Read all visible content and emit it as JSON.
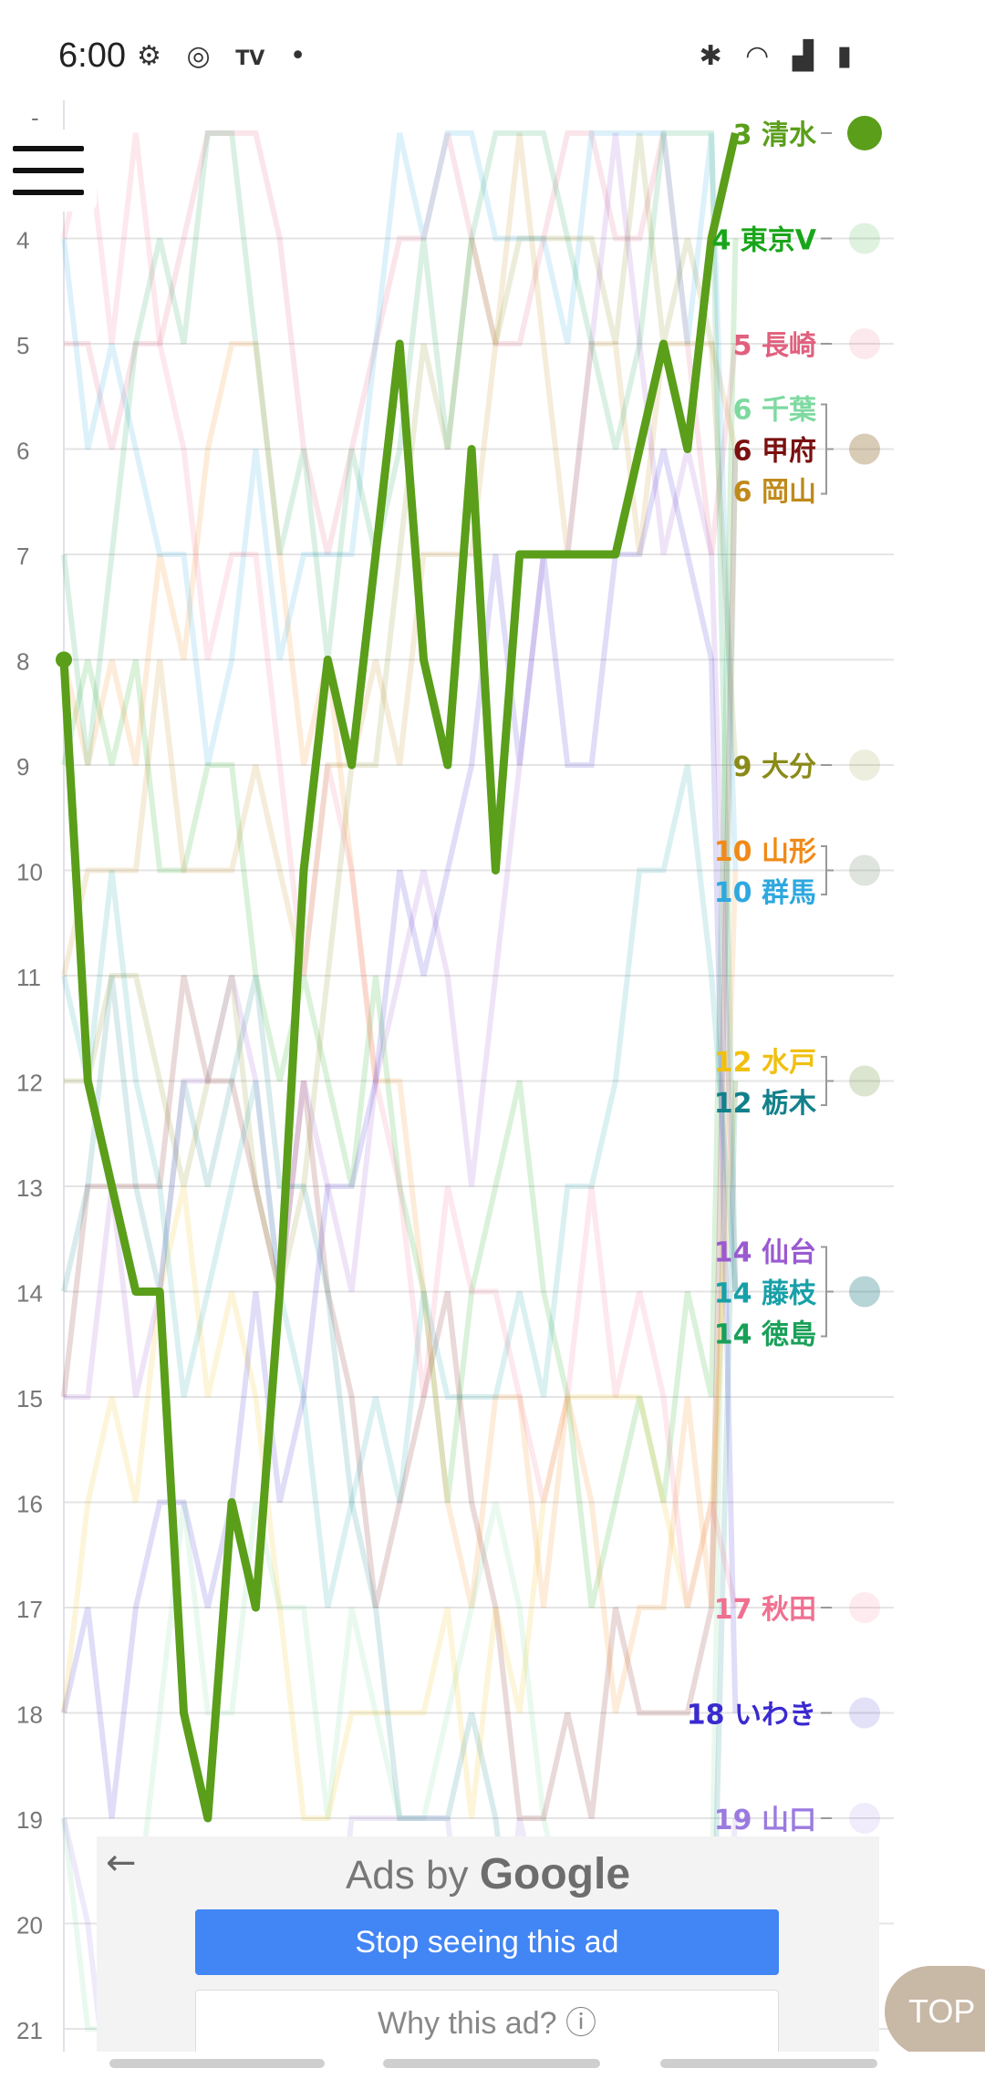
{
  "status_bar": {
    "time": "6:00",
    "left_icons": [
      "gear-icon",
      "instagram-icon",
      "tver-icon",
      "dot-icon"
    ],
    "right_icons": [
      "bluetooth-icon",
      "wifi-icon",
      "signal-icon",
      "battery-icon"
    ]
  },
  "chart_data": {
    "type": "line",
    "y_ticks": [
      4,
      5,
      6,
      7,
      8,
      9,
      10,
      11,
      12,
      13,
      14,
      15,
      16,
      17,
      18,
      19,
      20,
      21
    ],
    "y_partial_top": "-",
    "highlight_series": {
      "name": "清水",
      "color": "#5a9e1a",
      "values": [
        8,
        12,
        13,
        14,
        14,
        18,
        19,
        16,
        17,
        14,
        10,
        8,
        9,
        7,
        5,
        8,
        9,
        6,
        10,
        7,
        7,
        7,
        7,
        7,
        6,
        5,
        6,
        4,
        3
      ]
    },
    "end_labels": [
      {
        "rank": "3",
        "team": "清水",
        "color": "#5a9e1a"
      },
      {
        "rank": "4",
        "team": "東京V",
        "color": "#19a519"
      },
      {
        "rank": "5",
        "team": "長崎",
        "color": "#e0607e"
      },
      {
        "rank": "6",
        "team": "千葉",
        "color": "#7ed9a0"
      },
      {
        "rank": "6",
        "team": "甲府",
        "color": "#7a1010"
      },
      {
        "rank": "6",
        "team": "岡山",
        "color": "#c08a1a"
      },
      {
        "rank": "9",
        "team": "大分",
        "color": "#8a8a18"
      },
      {
        "rank": "10",
        "team": "山形",
        "color": "#f08a18"
      },
      {
        "rank": "10",
        "team": "群馬",
        "color": "#2ea8e0"
      },
      {
        "rank": "12",
        "team": "水戸",
        "color": "#f0c010"
      },
      {
        "rank": "12",
        "team": "栃木",
        "color": "#12808a"
      },
      {
        "rank": "14",
        "team": "仙台",
        "color": "#9a5ad0"
      },
      {
        "rank": "14",
        "team": "藤枝",
        "color": "#18a0a8"
      },
      {
        "rank": "14",
        "team": "徳島",
        "color": "#18a058"
      },
      {
        "rank": "17",
        "team": "秋田",
        "color": "#f07090"
      },
      {
        "rank": "18",
        "team": "いわき",
        "color": "#3a2ad0"
      },
      {
        "rank": "19",
        "team": "山口",
        "color": "#9a7ae0"
      }
    ],
    "grid": true
  },
  "menu": {
    "icon": "hamburger-menu-icon"
  },
  "ad": {
    "back_glyph": "←",
    "title_prefix": "Ads by ",
    "title_brand": "Google",
    "stop_label": "Stop seeing this ad",
    "why_label": "Why this ad? ⓘ"
  },
  "top_button": {
    "label": "TOP"
  }
}
